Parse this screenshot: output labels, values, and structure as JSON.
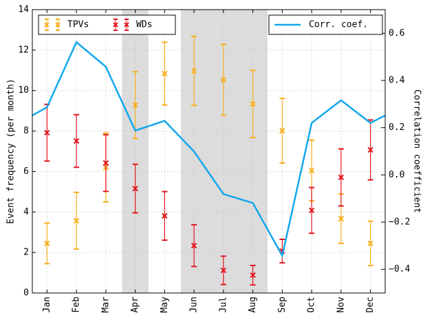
{
  "chart_data": {
    "type": "errorbar",
    "categories": [
      "Jan",
      "Feb",
      "Mar",
      "Apr",
      "May",
      "Jun",
      "Jul",
      "Aug",
      "Sep",
      "Oct",
      "Nov",
      "Dec"
    ],
    "xlim": [
      -0.5,
      11.5
    ],
    "ylim": [
      0,
      14
    ],
    "yticks": [
      0,
      2,
      4,
      6,
      8,
      10,
      12,
      14
    ],
    "y2lim": [
      -0.5,
      0.7
    ],
    "y2ticks": [
      {
        "value": -0.4,
        "label": "−0.4"
      },
      {
        "value": -0.2,
        "label": "−0.2"
      },
      {
        "value": 0,
        "label": "0.0"
      },
      {
        "value": 0.2,
        "label": "0.2"
      },
      {
        "value": 0.4,
        "label": "0.4"
      },
      {
        "value": 0.6,
        "label": "0.6"
      }
    ],
    "ylabel": "Event frequency (per month)",
    "y2label": "Correlation coefficient",
    "grid": true,
    "shaded_regions": [
      [
        2.55,
        3.45
      ],
      [
        4.55,
        7.5
      ]
    ],
    "legend": "upper left",
    "legend2": "upper right",
    "series": [
      {
        "name": "TPVs",
        "color": "#f7ae1c",
        "values": [
          2.45,
          3.57,
          6.2,
          9.28,
          10.84,
          10.97,
          10.53,
          9.34,
          8.02,
          6.05,
          3.67,
          2.45
        ],
        "errors": [
          1.0,
          1.4,
          1.7,
          1.65,
          1.55,
          1.7,
          1.75,
          1.66,
          1.6,
          1.5,
          1.22,
          1.1
        ]
      },
      {
        "name": "WDs",
        "color": "#e3141c",
        "values": [
          7.92,
          7.51,
          6.42,
          5.16,
          3.81,
          2.34,
          1.12,
          0.88,
          2.07,
          4.08,
          5.71,
          7.07
        ],
        "errors": [
          1.4,
          1.3,
          1.4,
          1.2,
          1.2,
          1.03,
          0.7,
          0.48,
          0.58,
          1.13,
          1.41,
          1.48
        ]
      },
      {
        "name": "Corr. coef.",
        "color": "#12a7ee",
        "axis": "y2",
        "type": "line",
        "x": [
          -0.5,
          0,
          1,
          2,
          3,
          4,
          5,
          6,
          7,
          8,
          9,
          10,
          11,
          11.5
        ],
        "values": [
          0.252,
          0.287,
          0.562,
          0.458,
          0.188,
          0.229,
          0.099,
          -0.081,
          -0.119,
          -0.342,
          0.22,
          0.316,
          0.22,
          0.252
        ]
      }
    ]
  }
}
